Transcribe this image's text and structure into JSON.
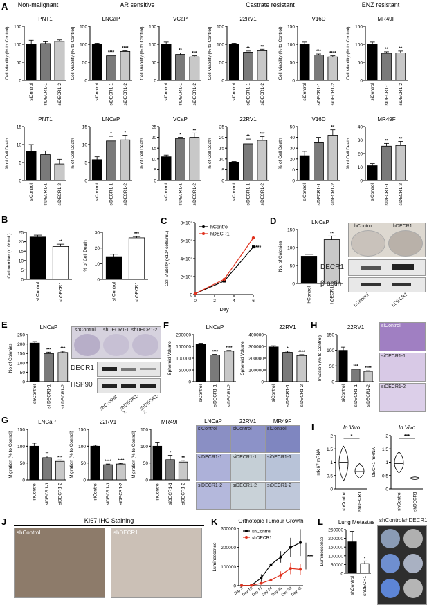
{
  "panel_letters": [
    "A",
    "B",
    "C",
    "D",
    "E",
    "F",
    "G",
    "H",
    "I",
    "J",
    "K",
    "L"
  ],
  "group_headers": [
    "Non-malignant",
    "AR sensitive",
    "Castrate resistant",
    "ENZ resistant"
  ],
  "colors": {
    "black": "#000000",
    "dark": "#7a7a7a",
    "light": "#c8c8c8",
    "red": "#e0321e",
    "white": "#ffffff"
  },
  "panelD_title": "LNCaP",
  "panelD_photo": {
    "left": "hControl",
    "right": "hDECR1",
    "blot_rows": [
      "DECR1",
      "β-actin"
    ],
    "blot_lanes": [
      "hControl",
      "hDECR1"
    ]
  },
  "panelE_photo": {
    "dishes": [
      "shControl",
      "shDECR1-1",
      "shDECR1-2"
    ],
    "blot_rows": [
      "DECR1",
      "HSP90"
    ],
    "blot_lanes": [
      "shControl",
      "shDECR1-1",
      "shDECR1-2"
    ]
  },
  "panelG_photo": {
    "cols": [
      "LNCaP",
      "22RV1",
      "MR49F"
    ],
    "rows": [
      "siControl",
      "siDECR1-1",
      "siDECR1-2"
    ]
  },
  "panelH_photo": {
    "rows": [
      "siControl",
      "siDECR1-1",
      "siDECR1-2"
    ]
  },
  "panelJ": {
    "title": "KI67 IHC Staining",
    "left": "shControl",
    "right": "shDECR1"
  },
  "panelL_photo": {
    "cols": [
      "shControl",
      "shDECR1"
    ]
  },
  "chart_data": [
    {
      "id": "A1",
      "type": "bar",
      "title": "PNT1",
      "ylabel": "Cell Viability (% to Control)",
      "categories": [
        "siControl",
        "siDECR1-1",
        "siDECR1-2"
      ],
      "values": [
        100,
        102,
        108
      ],
      "errors": [
        11,
        5,
        4
      ],
      "sig": [
        "",
        "",
        ""
      ],
      "ylim": [
        0,
        150
      ],
      "yticks": [
        0,
        50,
        100,
        150
      ]
    },
    {
      "id": "A2",
      "type": "bar",
      "title": "LNCaP",
      "ylabel": "Cell Viability (% to Control)",
      "categories": [
        "siControl",
        "siDECR1-1",
        "siDECR1-2"
      ],
      "values": [
        100,
        68,
        80
      ],
      "errors": [
        3,
        2,
        2
      ],
      "sig": [
        "",
        "****",
        "****"
      ],
      "ylim": [
        0,
        150
      ],
      "yticks": [
        0,
        50,
        100,
        150
      ]
    },
    {
      "id": "A3",
      "type": "bar",
      "title": "VCaP",
      "ylabel": "Cell Viability (% to Control)",
      "categories": [
        "siControl",
        "siDECR1-1",
        "siDECR1-2"
      ],
      "values": [
        100,
        72,
        65
      ],
      "errors": [
        6,
        4,
        3
      ],
      "sig": [
        "",
        "**",
        "***"
      ],
      "ylim": [
        0,
        150
      ],
      "yticks": [
        0,
        50,
        100,
        150
      ]
    },
    {
      "id": "A4",
      "type": "bar",
      "title": "22RV1",
      "ylabel": "Cell Viability (% to Control)",
      "categories": [
        "siControl",
        "siDECR1-1",
        "siDECR1-2"
      ],
      "values": [
        100,
        78,
        82
      ],
      "errors": [
        3,
        3,
        4
      ],
      "sig": [
        "",
        "**",
        "**"
      ],
      "ylim": [
        0,
        150
      ],
      "yticks": [
        0,
        50,
        100,
        150
      ]
    },
    {
      "id": "A5",
      "type": "bar",
      "title": "V16D",
      "ylabel": "Cell Viability (% to Control)",
      "categories": [
        "siControl",
        "siDECR1-1",
        "siDECR1-2"
      ],
      "values": [
        100,
        70,
        65
      ],
      "errors": [
        6,
        3,
        3
      ],
      "sig": [
        "",
        "***",
        "****"
      ],
      "ylim": [
        0,
        150
      ],
      "yticks": [
        0,
        50,
        100,
        150
      ]
    },
    {
      "id": "A6",
      "type": "bar",
      "title": "MR49F",
      "ylabel": "Cell Viability (% to Control)",
      "categories": [
        "siControl",
        "siDECR1-1",
        "siDECR1-2"
      ],
      "values": [
        100,
        75,
        76
      ],
      "errors": [
        6,
        4,
        5
      ],
      "sig": [
        "",
        "**",
        "**"
      ],
      "ylim": [
        0,
        150
      ],
      "yticks": [
        0,
        50,
        100,
        150
      ]
    },
    {
      "id": "A7",
      "type": "bar",
      "title": "PNT1",
      "ylabel": "% of Cell Death",
      "categories": [
        "siControl",
        "siDECR1-1",
        "siDECR1-2"
      ],
      "values": [
        8,
        7.2,
        4.6
      ],
      "errors": [
        2,
        1,
        1.3
      ],
      "sig": [
        "",
        "",
        ""
      ],
      "ylim": [
        0,
        15
      ],
      "yticks": [
        0,
        5,
        10,
        15
      ]
    },
    {
      "id": "A8",
      "type": "bar",
      "title": "LNCaP",
      "ylabel": "% of Cell Death",
      "categories": [
        "siControl",
        "siDECR1-1",
        "siDECR1-2"
      ],
      "values": [
        5.8,
        11,
        11.3
      ],
      "errors": [
        0.8,
        1.3,
        1.3
      ],
      "sig": [
        "",
        "*",
        "*"
      ],
      "ylim": [
        0,
        15
      ],
      "yticks": [
        0,
        5,
        10,
        15
      ]
    },
    {
      "id": "A9",
      "type": "bar",
      "title": "VCaP",
      "ylabel": "% of Cell Death",
      "categories": [
        "siControl",
        "siDECR1-1",
        "siDECR1-2"
      ],
      "values": [
        11,
        19.5,
        20
      ],
      "errors": [
        0.8,
        0.5,
        2
      ],
      "sig": [
        "",
        "*",
        "**"
      ],
      "ylim": [
        0,
        25
      ],
      "yticks": [
        0,
        5,
        10,
        15,
        20,
        25
      ]
    },
    {
      "id": "A10",
      "type": "bar",
      "title": "22RV1",
      "ylabel": "% of Cell Death",
      "categories": [
        "siControl",
        "siDECR1-1",
        "siDECR1-2"
      ],
      "values": [
        8.3,
        17,
        18.6
      ],
      "errors": [
        0.5,
        2.2,
        1.8
      ],
      "sig": [
        "",
        "**",
        "***"
      ],
      "ylim": [
        0,
        25
      ],
      "yticks": [
        0,
        5,
        10,
        15,
        20,
        25
      ]
    },
    {
      "id": "A11",
      "type": "bar",
      "title": "V16D",
      "ylabel": "% of Cell Death",
      "categories": [
        "siControl",
        "siDECR1-1",
        "siDECR1-2"
      ],
      "values": [
        23,
        35,
        42
      ],
      "errors": [
        4,
        5,
        5
      ],
      "sig": [
        "",
        "",
        "**"
      ],
      "ylim": [
        0,
        50
      ],
      "yticks": [
        0,
        10,
        20,
        30,
        40,
        50
      ]
    },
    {
      "id": "A12",
      "type": "bar",
      "title": "MR49F",
      "ylabel": "% of Cell Death",
      "categories": [
        "siControl",
        "siDECR1-1",
        "siDECR1-2"
      ],
      "values": [
        11,
        25.5,
        26
      ],
      "errors": [
        1.5,
        2,
        3
      ],
      "sig": [
        "",
        "**",
        "**"
      ],
      "ylim": [
        0,
        40
      ],
      "yticks": [
        0,
        10,
        20,
        30,
        40
      ]
    },
    {
      "id": "B1",
      "type": "bar",
      "title": "",
      "ylabel": "Cell number (x10⁶/mL)",
      "categories": [
        "shControl",
        "shDECR1"
      ],
      "values": [
        22.5,
        17.5
      ],
      "errors": [
        1,
        1.2
      ],
      "sig": [
        "",
        "**"
      ],
      "ylim": [
        0,
        25
      ],
      "yticks": [
        0,
        5,
        10,
        15,
        20,
        25
      ]
    },
    {
      "id": "B2",
      "type": "bar",
      "title": "",
      "ylabel": "% of Cell Death",
      "categories": [
        "shControl",
        "shDECR1"
      ],
      "values": [
        14.5,
        26.5
      ],
      "errors": [
        1.5,
        0.8
      ],
      "sig": [
        "",
        "***"
      ],
      "ylim": [
        0,
        30
      ],
      "yticks": [
        0,
        10,
        20,
        30
      ]
    },
    {
      "id": "C",
      "type": "line",
      "title": "",
      "ylabel": "Cell Viability (x10⁴ cells/mL)",
      "xlabel": "Day",
      "x": [
        0,
        3,
        6
      ],
      "series": [
        {
          "name": "hControl",
          "values": [
            0.1,
            1.5,
            5.3
          ]
        },
        {
          "name": "hDECR1",
          "values": [
            0.1,
            1.7,
            6.3
          ]
        }
      ],
      "sig": "***",
      "xlim": [
        0,
        6
      ],
      "xticks": [
        0,
        2,
        4,
        6
      ],
      "ylim": [
        0,
        8
      ],
      "yticks": [
        0,
        2,
        4,
        6,
        8
      ],
      "ytick_labels": [
        "0",
        "2×10⁵",
        "4×10⁵",
        "6×10⁵",
        "8×10⁵"
      ]
    },
    {
      "id": "D",
      "type": "bar",
      "title": "LNCaP",
      "ylabel": "No. of Colonies",
      "categories": [
        "hControl",
        "hDECR1"
      ],
      "values": [
        76,
        122
      ],
      "errors": [
        5,
        10
      ],
      "sig": [
        "",
        "**"
      ],
      "ylim": [
        0,
        150
      ],
      "yticks": [
        0,
        50,
        100,
        150
      ]
    },
    {
      "id": "E",
      "type": "bar",
      "title": "LNCaP",
      "ylabel": "No of Colonies",
      "categories": [
        "shControl",
        "shDECR1-1",
        "shDECR1-2"
      ],
      "values": [
        205,
        150,
        155
      ],
      "errors": [
        8,
        7,
        7
      ],
      "sig": [
        "",
        "***",
        "***"
      ],
      "ylim": [
        0,
        250
      ],
      "yticks": [
        0,
        50,
        100,
        150,
        200,
        250
      ]
    },
    {
      "id": "F1",
      "type": "bar",
      "title": "LNCaP",
      "ylabel": "Spheroid Volume",
      "categories": [
        "siControl",
        "siDECR1-1",
        "siDECR1-2"
      ],
      "values": [
        158000,
        113000,
        130000
      ],
      "errors": [
        5000,
        3000,
        3000
      ],
      "sig": [
        "",
        "****",
        "****"
      ],
      "ylim": [
        0,
        200000
      ],
      "yticks": [
        0,
        50000,
        100000,
        150000,
        200000
      ]
    },
    {
      "id": "F2",
      "type": "bar",
      "title": "22RV1",
      "ylabel": "Spheroid Volume",
      "categories": [
        "siControl",
        "siDECR1-1",
        "siDECR1-2"
      ],
      "values": [
        295000,
        250000,
        222000
      ],
      "errors": [
        10000,
        10000,
        8000
      ],
      "sig": [
        "",
        "*",
        "****"
      ],
      "ylim": [
        0,
        400000
      ],
      "yticks": [
        0,
        100000,
        200000,
        300000,
        400000
      ]
    },
    {
      "id": "H",
      "type": "bar",
      "title": "22RV1",
      "ylabel": "Invasion (% to Control)",
      "categories": [
        "siControl",
        "siDECR1-1",
        "siDECR1-2"
      ],
      "values": [
        100,
        40,
        33
      ],
      "errors": [
        10,
        1,
        2
      ],
      "sig": [
        "",
        "***",
        "****"
      ],
      "ylim": [
        0,
        150
      ],
      "yticks": [
        0,
        50,
        100,
        150
      ]
    },
    {
      "id": "G1",
      "type": "bar",
      "title": "LNCaP",
      "ylabel": "Migration (% to Control)",
      "categories": [
        "siControl",
        "siDECR1-1",
        "siDECR1-2"
      ],
      "values": [
        100,
        66,
        55
      ],
      "errors": [
        9,
        5,
        4
      ],
      "sig": [
        "",
        "**",
        "***"
      ],
      "ylim": [
        0,
        150
      ],
      "yticks": [
        0,
        50,
        100,
        150
      ]
    },
    {
      "id": "G2",
      "type": "bar",
      "title": "22RV1",
      "ylabel": "Migration (% to Control)",
      "categories": [
        "siControl",
        "siDECR1-1",
        "siDECR1-2"
      ],
      "values": [
        100,
        45,
        47
      ],
      "errors": [
        3,
        2,
        2
      ],
      "sig": [
        "",
        "****",
        "****"
      ],
      "ylim": [
        0,
        150
      ],
      "yticks": [
        0,
        50,
        100,
        150
      ]
    },
    {
      "id": "G3",
      "type": "bar",
      "title": "MR49F",
      "ylabel": "Migration (% to Control)",
      "categories": [
        "siControl",
        "siDECR1-1",
        "siDECR1-2"
      ],
      "values": [
        100,
        60,
        53
      ],
      "errors": [
        12,
        13,
        5
      ],
      "sig": [
        "",
        "*",
        "**"
      ],
      "ylim": [
        0,
        150
      ],
      "yticks": [
        0,
        50,
        100,
        150
      ]
    },
    {
      "id": "I1",
      "type": "violin",
      "title": "In Vivo",
      "ylabel": "mki67 mRNA",
      "categories": [
        "shControl",
        "shDECR1"
      ],
      "values": [
        1.0,
        0.65
      ],
      "ranges": [
        [
          0.3,
          1.6
        ],
        [
          0.4,
          0.95
        ]
      ],
      "sig": "*",
      "ylim": [
        0,
        2
      ],
      "yticks": [
        0,
        0.5,
        1.0,
        1.5,
        2.0
      ]
    },
    {
      "id": "I2",
      "type": "violin",
      "title": "In Vivo",
      "ylabel": "DECR1 mRNA",
      "categories": [
        "shControl",
        "shDECR1"
      ],
      "values": [
        0.95,
        0.4
      ],
      "ranges": [
        [
          0.6,
          1.4
        ],
        [
          0.35,
          0.45
        ]
      ],
      "sig": "***",
      "ylim": [
        0,
        2
      ],
      "yticks": [
        0,
        0.5,
        1.0,
        1.5,
        2.0
      ]
    },
    {
      "id": "K",
      "type": "line",
      "title": "Orthotopic Tumour Growth",
      "ylabel": "Luminescence",
      "xlabel": "",
      "categories": [
        "Day 3",
        "Day 10",
        "Day 17",
        "Day 24",
        "Day 31",
        "Day 38",
        "Day 45"
      ],
      "series": [
        {
          "name": "shControl",
          "values": [
            1000,
            2000,
            40000,
            110000,
            150000,
            200000,
            225000
          ],
          "errors": [
            500,
            1000,
            20000,
            30000,
            30000,
            50000,
            70000
          ]
        },
        {
          "name": "shDECR1",
          "values": [
            800,
            1500,
            12000,
            30000,
            55000,
            90000,
            85000
          ],
          "errors": [
            300,
            500,
            5000,
            10000,
            20000,
            30000,
            30000
          ]
        }
      ],
      "sig": "***",
      "ylim": [
        0,
        300000
      ],
      "yticks": [
        0,
        100000,
        200000,
        300000
      ]
    },
    {
      "id": "L",
      "type": "bar",
      "title": "Lung Metastasis",
      "ylabel": "Luminescence",
      "categories": [
        "shControl",
        "shDECR1"
      ],
      "values": [
        180000,
        55000
      ],
      "errors": [
        60000,
        15000
      ],
      "sig": [
        "",
        "*"
      ],
      "ylim": [
        0,
        250000
      ],
      "yticks": [
        0,
        50000,
        100000,
        150000,
        200000,
        250000
      ]
    }
  ]
}
